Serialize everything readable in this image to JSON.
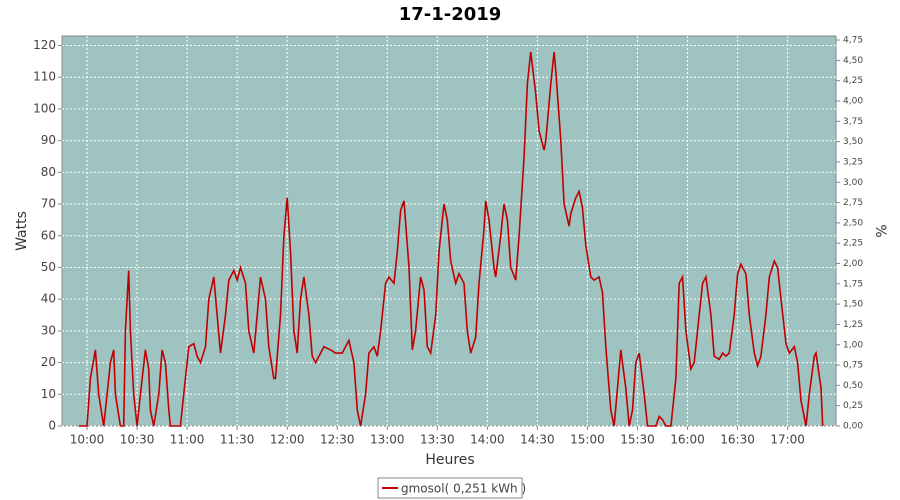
{
  "chart_data": {
    "type": "line",
    "title": "17-1-2019",
    "xlabel": "Heures",
    "ylabel": "Watts",
    "y2label": "%",
    "x": [
      "09:55",
      "10:00",
      "10:02",
      "10:05",
      "10:07",
      "10:10",
      "10:11",
      "10:14",
      "10:16",
      "10:17",
      "10:20",
      "10:22",
      "10:23",
      "10:25",
      "10:26",
      "10:28",
      "10:30",
      "10:32",
      "10:35",
      "10:37",
      "10:38",
      "10:40",
      "10:43",
      "10:45",
      "10:47",
      "10:49",
      "10:50",
      "10:56",
      "10:59",
      "11:01",
      "11:04",
      "11:06",
      "11:08",
      "11:11",
      "11:13",
      "11:16",
      "11:18",
      "11:20",
      "11:23",
      "11:25",
      "11:28",
      "11:30",
      "11:32",
      "11:35",
      "11:37",
      "11:40",
      "11:42",
      "11:44",
      "11:47",
      "11:49",
      "11:52",
      "11:53",
      "11:56",
      "11:58",
      "12:00",
      "12:02",
      "12:04",
      "12:06",
      "12:08",
      "12:10",
      "12:13",
      "12:15",
      "12:17",
      "12:20",
      "12:22",
      "12:26",
      "12:29",
      "12:33",
      "12:37",
      "12:40",
      "12:42",
      "12:44",
      "12:47",
      "12:49",
      "12:52",
      "12:54",
      "12:56",
      "12:59",
      "13:01",
      "13:04",
      "13:06",
      "13:08",
      "13:10",
      "13:13",
      "13:15",
      "13:17",
      "13:20",
      "13:22",
      "13:24",
      "13:26",
      "13:29",
      "13:31",
      "13:34",
      "13:36",
      "13:38",
      "13:41",
      "13:43",
      "13:46",
      "13:48",
      "13:50",
      "13:53",
      "13:55",
      "13:58",
      "13:59",
      "14:01",
      "14:04",
      "14:05",
      "14:08",
      "14:10",
      "14:12",
      "14:14",
      "14:17",
      "14:19",
      "14:22",
      "14:24",
      "14:26",
      "14:29",
      "14:31",
      "14:34",
      "14:35",
      "14:38",
      "14:40",
      "14:41",
      "14:44",
      "14:46",
      "14:49",
      "14:50",
      "14:53",
      "14:55",
      "14:57",
      "14:59",
      "15:02",
      "15:04",
      "15:07",
      "15:09",
      "15:11",
      "15:14",
      "15:16",
      "15:18",
      "15:20",
      "15:23",
      "15:25",
      "15:27",
      "15:29",
      "15:31",
      "15:34",
      "15:36",
      "15:38",
      "15:41",
      "15:43",
      "15:45",
      "15:47",
      "15:50",
      "15:53",
      "15:55",
      "15:57",
      "15:59",
      "16:02",
      "16:04",
      "16:07",
      "16:09",
      "16:11",
      "16:14",
      "16:16",
      "16:19",
      "16:21",
      "16:23",
      "16:25",
      "16:28",
      "16:30",
      "16:32",
      "16:35",
      "16:37",
      "16:40",
      "16:42",
      "16:44",
      "16:47",
      "16:49",
      "16:52",
      "16:54",
      "16:56",
      "16:59",
      "17:01",
      "17:04",
      "17:06",
      "17:08",
      "17:11",
      "17:13",
      "17:16",
      "17:17",
      "17:20",
      "17:21"
    ],
    "series": [
      {
        "name": "gmosol( 0,251 kWh )",
        "color": "#c00000",
        "values": [
          0,
          0,
          15,
          24,
          10,
          0,
          5,
          20,
          24,
          10,
          0,
          0,
          30,
          49,
          30,
          10,
          0,
          10,
          24,
          18,
          5,
          0,
          10,
          24,
          20,
          5,
          0,
          0,
          15,
          25,
          26,
          22,
          20,
          25,
          40,
          47,
          35,
          23,
          35,
          46,
          49,
          46,
          50,
          45,
          30,
          23,
          35,
          47,
          40,
          25,
          15,
          15,
          35,
          60,
          72,
          55,
          30,
          23,
          40,
          47,
          35,
          22,
          20,
          23,
          25,
          24,
          23,
          23,
          27,
          20,
          5,
          0,
          10,
          23,
          25,
          22,
          30,
          45,
          47,
          45,
          55,
          68,
          71,
          50,
          24,
          30,
          47,
          43,
          25,
          23,
          35,
          55,
          70,
          65,
          52,
          45,
          48,
          45,
          30,
          23,
          28,
          45,
          62,
          71,
          65,
          50,
          47,
          60,
          70,
          65,
          50,
          46,
          60,
          85,
          108,
          118,
          105,
          93,
          87,
          90,
          108,
          118,
          112,
          90,
          70,
          63,
          67,
          72,
          74,
          69,
          57,
          47,
          46,
          47,
          42,
          25,
          5,
          0,
          12,
          24,
          12,
          0,
          5,
          20,
          23,
          10,
          0,
          0,
          0,
          3,
          2,
          0,
          0,
          15,
          45,
          47,
          30,
          18,
          20,
          35,
          45,
          47,
          35,
          22,
          21,
          23,
          22,
          23,
          35,
          48,
          51,
          48,
          35,
          23,
          19,
          22,
          35,
          47,
          52,
          50,
          40,
          26,
          23,
          25,
          20,
          8,
          0,
          10,
          22,
          23,
          12,
          0
        ]
      }
    ],
    "xlim": [
      "09:45",
      "17:29"
    ],
    "xticks": [
      "10:00",
      "10:30",
      "11:00",
      "11:30",
      "12:00",
      "12:30",
      "13:00",
      "13:30",
      "14:00",
      "14:30",
      "15:00",
      "15:30",
      "16:00",
      "16:30",
      "17:00"
    ],
    "ylim": [
      0,
      123
    ],
    "yticks": [
      0,
      10,
      20,
      30,
      40,
      50,
      60,
      70,
      80,
      90,
      100,
      110,
      120
    ],
    "y2lim": [
      0,
      4.8
    ],
    "y2ticks": [
      {
        "value": 0,
        "label": "0,00"
      },
      {
        "value": 0.25,
        "label": "0,25"
      },
      {
        "value": 0.5,
        "label": "0,50"
      },
      {
        "value": 0.75,
        "label": "0,75"
      },
      {
        "value": 1,
        "label": "1,00"
      },
      {
        "value": 1.25,
        "label": "1,25"
      },
      {
        "value": 1.5,
        "label": "1,50"
      },
      {
        "value": 1.75,
        "label": "1,75"
      },
      {
        "value": 2,
        "label": "2,00"
      },
      {
        "value": 2.25,
        "label": "2,25"
      },
      {
        "value": 2.5,
        "label": "2,50"
      },
      {
        "value": 2.75,
        "label": "2,75"
      },
      {
        "value": 3,
        "label": "3,00"
      },
      {
        "value": 3.25,
        "label": "3,25"
      },
      {
        "value": 3.5,
        "label": "3,50"
      },
      {
        "value": 3.75,
        "label": "3,75"
      },
      {
        "value": 4,
        "label": "4,00"
      },
      {
        "value": 4.25,
        "label": "4,25"
      },
      {
        "value": 4.5,
        "label": "4,50"
      },
      {
        "value": 4.75,
        "label": "4,75"
      }
    ],
    "grid": true,
    "plot_background": "#9fc3c1",
    "legend": "bottom"
  }
}
